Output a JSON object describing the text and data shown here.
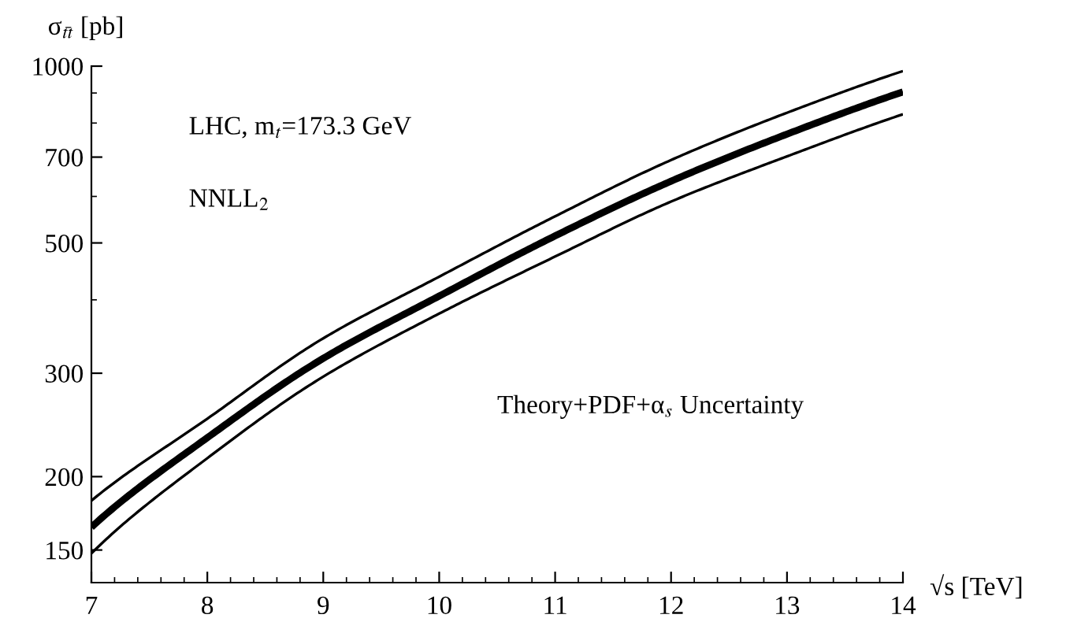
{
  "chart_data": {
    "type": "line",
    "xlabel": "√s [TeV]",
    "ylabel": "σ$_{tt̄}$ [pb]",
    "x": [
      7,
      8,
      9,
      10,
      11,
      12,
      13,
      14
    ],
    "series": [
      {
        "color": "#000000",
        "values": [
          182,
          251,
          344,
          438,
          555,
          692,
          833,
          981
        ]
      },
      {
        "color": "#000000",
        "values": [
          164,
          233,
          318,
          406,
          514,
          637,
          766,
          904
        ]
      },
      {
        "color": "#000000",
        "values": [
          148,
          215,
          296,
          379,
          474,
          588,
          702,
          828
        ]
      }
    ],
    "log": "y",
    "xlim": [
      7,
      14
    ],
    "ylim": [
      132,
      1000
    ],
    "xticks": [
      7,
      8,
      9,
      10,
      11,
      12,
      13,
      14
    ],
    "yticks": [
      150,
      200,
      300,
      500,
      700,
      1000
    ],
    "grid": false,
    "marker": "none",
    "line_style": "solid",
    "annotations": [
      "LHC, m$_{t}$=173.3 GeV",
      "NNLL$_{2}$",
      "Theory+PDF+α$_{s}$ Uncertainty"
    ]
  }
}
